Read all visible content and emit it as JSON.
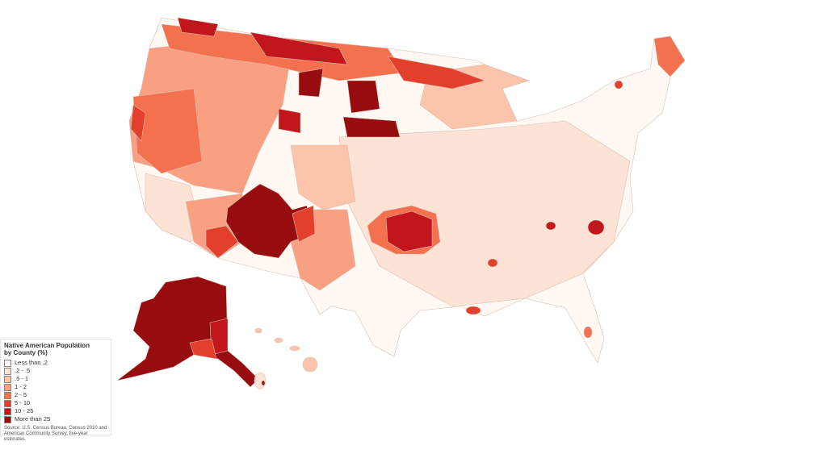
{
  "legend": {
    "title": [
      "Native American Population",
      "by County (%)"
    ],
    "items": [
      {
        "label": "Less than .2",
        "color": "#fff8f3"
      },
      {
        "label": ".2 - .5",
        "color": "#fde3d6"
      },
      {
        "label": ".5 - 1",
        "color": "#fbc4ab"
      },
      {
        "label": "1 - 2",
        "color": "#f9a083"
      },
      {
        "label": "2 - 5",
        "color": "#f4714f"
      },
      {
        "label": "5 - 10",
        "color": "#e2402c"
      },
      {
        "label": "10 - 25",
        "color": "#c1161b"
      },
      {
        "label": "More than 25",
        "color": "#960c0f"
      }
    ],
    "source": [
      "Source: U.S. Census Bureau, Census 2010 and",
      "American Community Survey, five-year estimates."
    ]
  }
}
